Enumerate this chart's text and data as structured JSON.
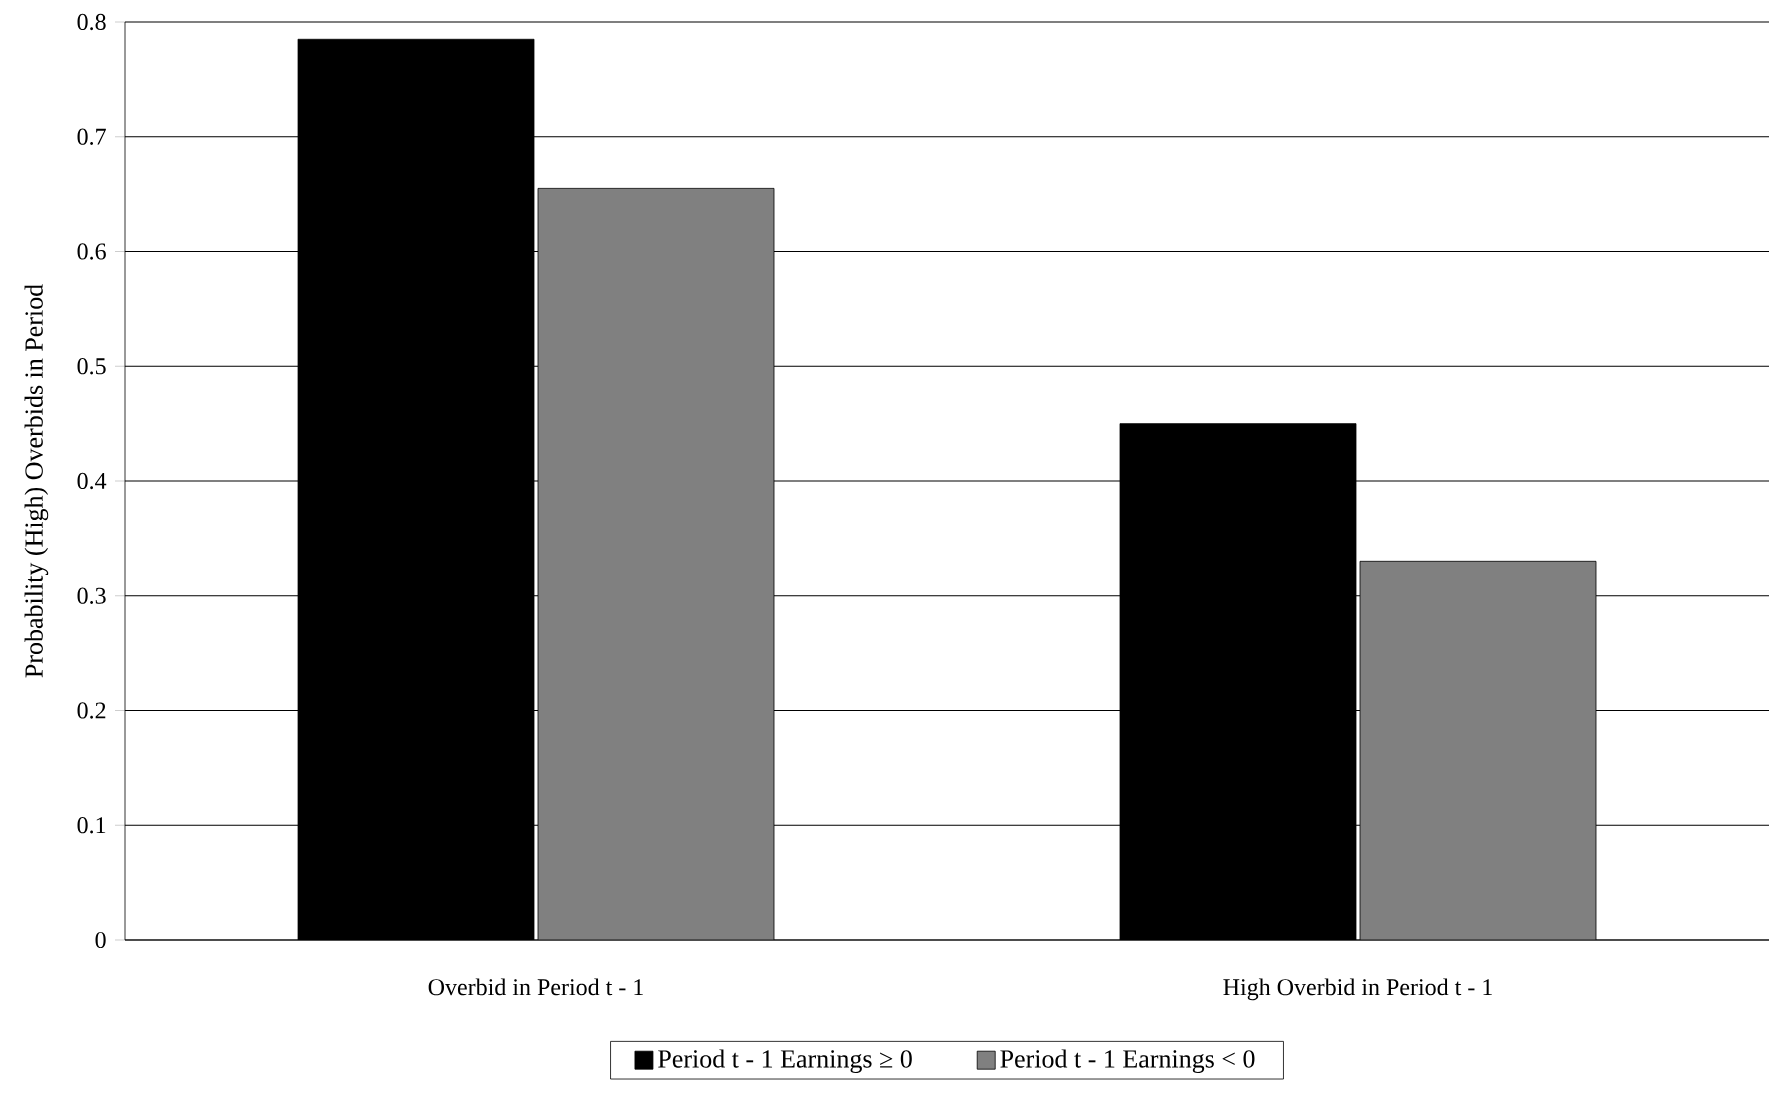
{
  "chart_data": {
    "type": "bar",
    "ylabel": "Probability (High) Overbids in Period",
    "categories": [
      "Overbid in Period t - 1",
      "High Overbid in Period t - 1"
    ],
    "series": [
      {
        "name": "Period t - 1 Earnings ≥ 0",
        "color": "#000000",
        "values": [
          0.785,
          0.45
        ]
      },
      {
        "name": "Period t - 1 Earnings < 0",
        "color": "#808080",
        "values": [
          0.655,
          0.33
        ]
      }
    ],
    "ylim": [
      0,
      0.8
    ],
    "yticks": [
      0,
      0.1,
      0.2,
      0.3,
      0.4,
      0.5,
      0.6,
      0.7,
      0.8
    ],
    "grid": "y",
    "legend": "bottom"
  }
}
